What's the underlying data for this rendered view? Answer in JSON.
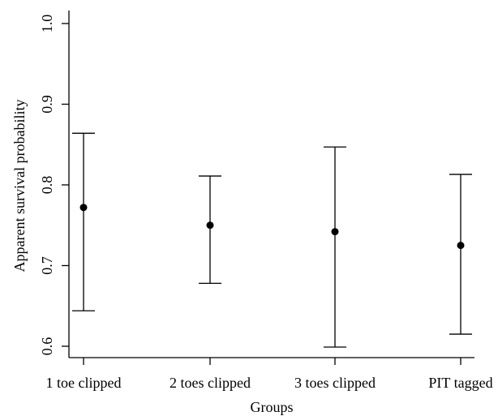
{
  "chart_data": {
    "type": "scatter",
    "title": "",
    "xlabel": "Groups",
    "ylabel": "Apparent survival probability",
    "categories": [
      "1 toe clipped",
      "2 toes clipped",
      "3 toes clipped",
      "PIT tagged"
    ],
    "series": [
      {
        "values": [
          0.772,
          0.75,
          0.742,
          0.725
        ],
        "lower": [
          0.644,
          0.678,
          0.599,
          0.615
        ],
        "upper": [
          0.864,
          0.811,
          0.847,
          0.813
        ]
      }
    ],
    "yticks": [
      0.6,
      0.7,
      0.8,
      0.9,
      1.0
    ],
    "ytick_labels": [
      "0.6",
      "0.7",
      "0.8",
      "0.9",
      "1.0"
    ],
    "ylim": [
      0.6,
      1.0
    ],
    "grid": false,
    "legend": "none"
  }
}
